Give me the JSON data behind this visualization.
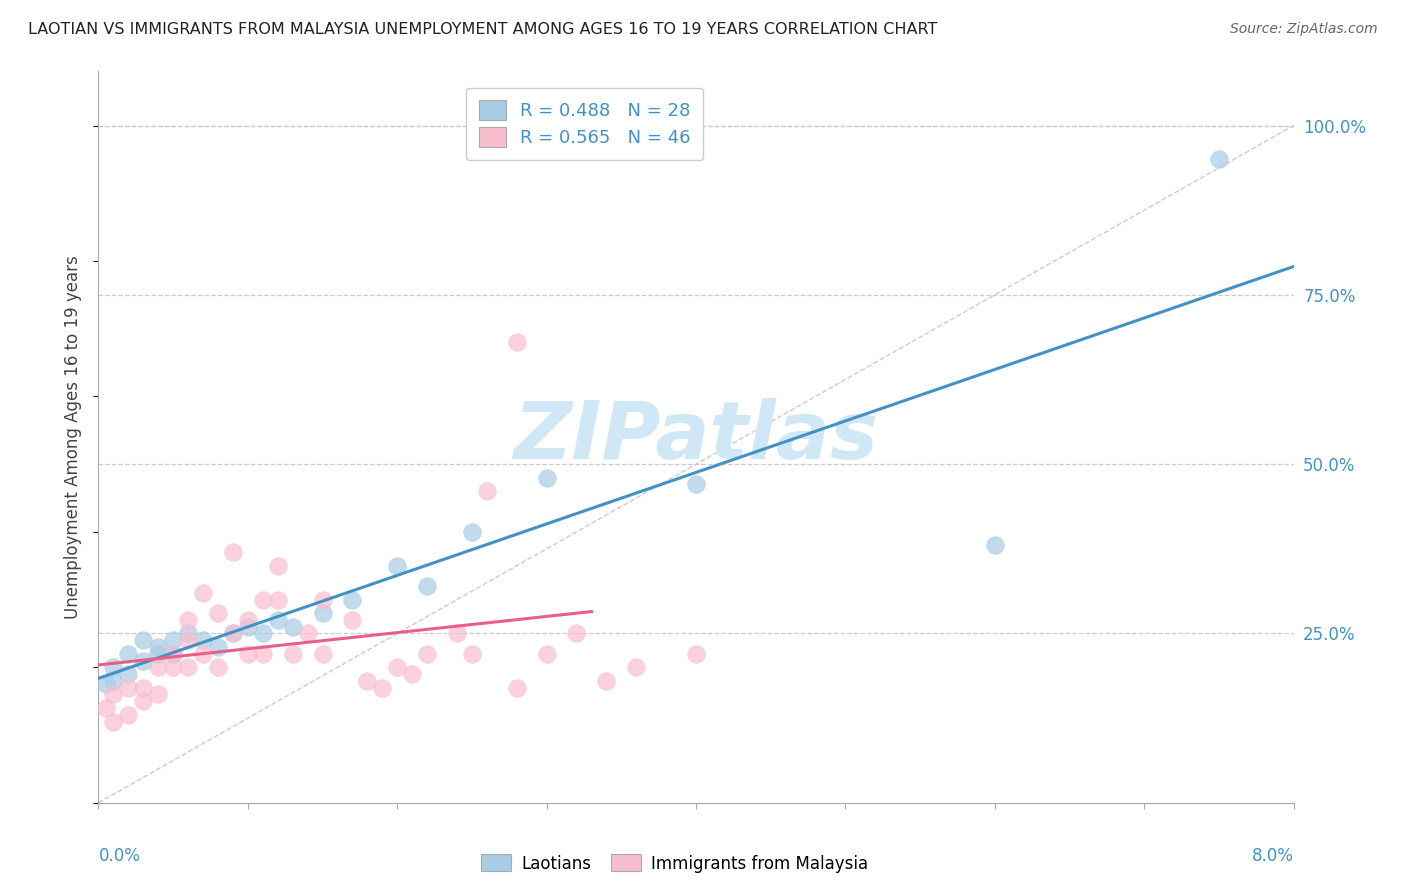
{
  "title": "LAOTIAN VS IMMIGRANTS FROM MALAYSIA UNEMPLOYMENT AMONG AGES 16 TO 19 YEARS CORRELATION CHART",
  "source": "Source: ZipAtlas.com",
  "ylabel": "Unemployment Among Ages 16 to 19 years",
  "ytick_labels": [
    "100.0%",
    "75.0%",
    "50.0%",
    "25.0%"
  ],
  "ytick_values": [
    1.0,
    0.75,
    0.5,
    0.25
  ],
  "xlim": [
    0.0,
    0.08
  ],
  "ylim": [
    0.0,
    1.08
  ],
  "legend_laotian_r": "R = 0.488",
  "legend_laotian_n": "N = 28",
  "legend_malaysia_r": "R = 0.565",
  "legend_malaysia_n": "N = 46",
  "color_laotian": "#a8cce4",
  "color_malaysia": "#f9bece",
  "color_line_laotian": "#4292c6",
  "color_line_malaysia": "#e8608a",
  "color_diagonal": "#cccccc",
  "watermark_color": "#d0e8f5",
  "laotian_x": [
    0.0005,
    0.001,
    0.001,
    0.002,
    0.002,
    0.003,
    0.003,
    0.004,
    0.004,
    0.005,
    0.005,
    0.006,
    0.007,
    0.008,
    0.009,
    0.01,
    0.011,
    0.012,
    0.013,
    0.015,
    0.017,
    0.02,
    0.022,
    0.025,
    0.03,
    0.04,
    0.06,
    0.075
  ],
  "laotian_y": [
    0.175,
    0.18,
    0.2,
    0.19,
    0.22,
    0.21,
    0.24,
    0.22,
    0.23,
    0.24,
    0.22,
    0.25,
    0.24,
    0.23,
    0.25,
    0.26,
    0.25,
    0.27,
    0.26,
    0.28,
    0.3,
    0.35,
    0.32,
    0.4,
    0.48,
    0.47,
    0.38,
    0.95
  ],
  "malaysia_x": [
    0.0005,
    0.001,
    0.001,
    0.002,
    0.002,
    0.003,
    0.003,
    0.004,
    0.004,
    0.005,
    0.005,
    0.006,
    0.006,
    0.006,
    0.007,
    0.007,
    0.008,
    0.008,
    0.009,
    0.009,
    0.01,
    0.01,
    0.011,
    0.011,
    0.012,
    0.012,
    0.013,
    0.014,
    0.015,
    0.015,
    0.017,
    0.018,
    0.019,
    0.02,
    0.021,
    0.022,
    0.024,
    0.025,
    0.026,
    0.028,
    0.03,
    0.032,
    0.034,
    0.036,
    0.04,
    0.028
  ],
  "malaysia_y": [
    0.14,
    0.12,
    0.16,
    0.13,
    0.17,
    0.15,
    0.17,
    0.16,
    0.2,
    0.2,
    0.22,
    0.24,
    0.2,
    0.27,
    0.22,
    0.31,
    0.2,
    0.28,
    0.25,
    0.37,
    0.22,
    0.27,
    0.3,
    0.22,
    0.3,
    0.35,
    0.22,
    0.25,
    0.22,
    0.3,
    0.27,
    0.18,
    0.17,
    0.2,
    0.19,
    0.22,
    0.25,
    0.22,
    0.46,
    0.17,
    0.22,
    0.25,
    0.18,
    0.2,
    0.22,
    0.68
  ]
}
